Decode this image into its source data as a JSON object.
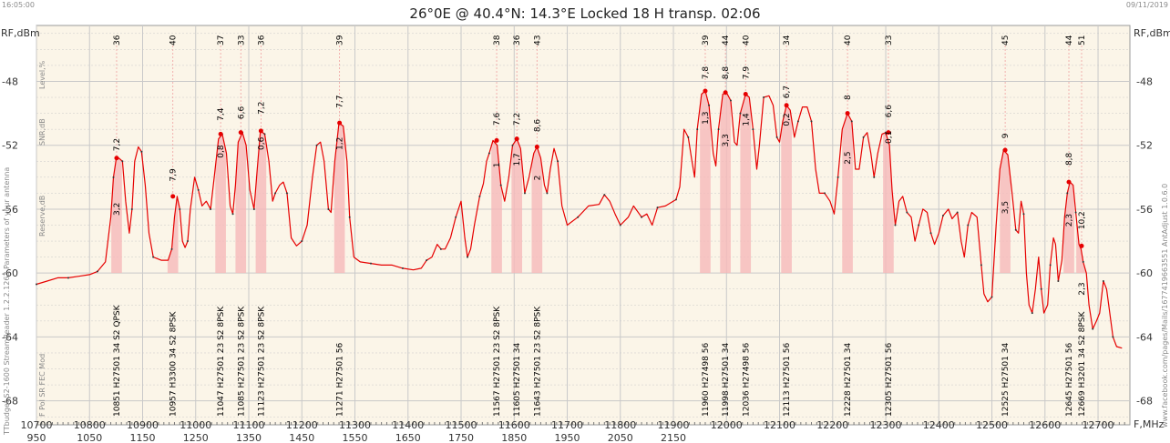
{
  "header": {
    "title": "26°0E @ 40.4°N: 14.3°E Locked 18 H transp. 02:06",
    "time_left": "16:05:00",
    "date_right": "09/11/2019"
  },
  "side_texts": {
    "left_info": "TTbudget S2-1600 StreamReader 1.2.2.1263 Parameters of your antenna",
    "right_info": "www.facebook.com/pages/Mails/1677419663551 AntAdjust 1.0.6.0"
  },
  "chart_data": {
    "type": "line",
    "xlabel": "F,MHz",
    "ylabel": "RF,dBm",
    "ylabel_right": "RF,dBm",
    "xlim": [
      10700,
      12760
    ],
    "ylim": [
      -69.5,
      -44.5
    ],
    "yticks": [
      -48,
      -52,
      -56,
      -60,
      -64,
      -68
    ],
    "xticks_top": [
      10700,
      10800,
      10900,
      11000,
      11100,
      11200,
      11300,
      11400,
      11500,
      11600,
      11700,
      11800,
      11900,
      12000,
      12100,
      12200,
      12300,
      12400,
      12500,
      12600,
      12700
    ],
    "xticks_bottom": [
      950,
      1050,
      1150,
      1250,
      1350,
      1450,
      1550,
      1650,
      1750,
      1850,
      1950,
      2050,
      2150
    ],
    "row_labels": [
      "Level,%",
      "SNR,dB",
      "Reserve,dB",
      "F Pol SR FEC Mod"
    ],
    "grid": true,
    "spectrum": [
      [
        10700,
        -60.7
      ],
      [
        10720,
        -60.5
      ],
      [
        10740,
        -60.3
      ],
      [
        10760,
        -60.3
      ],
      [
        10780,
        -60.2
      ],
      [
        10800,
        -60.1
      ],
      [
        10815,
        -59.9
      ],
      [
        10830,
        -59.3
      ],
      [
        10840,
        -56.5
      ],
      [
        10845,
        -54
      ],
      [
        10850,
        -52.9
      ],
      [
        10855,
        -52.8
      ],
      [
        10862,
        -53
      ],
      [
        10868,
        -55.5
      ],
      [
        10875,
        -57.5
      ],
      [
        10880,
        -56
      ],
      [
        10885,
        -53
      ],
      [
        10892,
        -52.1
      ],
      [
        10898,
        -52.4
      ],
      [
        10905,
        -54.5
      ],
      [
        10912,
        -57.5
      ],
      [
        10920,
        -59
      ],
      [
        10935,
        -59.2
      ],
      [
        10948,
        -59.2
      ],
      [
        10955,
        -58.5
      ],
      [
        10960,
        -56.5
      ],
      [
        10965,
        -55.2
      ],
      [
        10970,
        -56
      ],
      [
        10975,
        -58
      ],
      [
        10980,
        -58.4
      ],
      [
        10985,
        -58
      ],
      [
        10990,
        -56
      ],
      [
        10998,
        -54
      ],
      [
        11005,
        -54.8
      ],
      [
        11012,
        -55.8
      ],
      [
        11020,
        -55.5
      ],
      [
        11028,
        -56
      ],
      [
        11035,
        -54
      ],
      [
        11043,
        -51.6
      ],
      [
        11050,
        -51.3
      ],
      [
        11058,
        -52.5
      ],
      [
        11065,
        -55.8
      ],
      [
        11070,
        -56.3
      ],
      [
        11075,
        -54.5
      ],
      [
        11080,
        -51.8
      ],
      [
        11088,
        -51.2
      ],
      [
        11095,
        -52
      ],
      [
        11102,
        -54.8
      ],
      [
        11110,
        -56
      ],
      [
        11116,
        -53.5
      ],
      [
        11122,
        -51.1
      ],
      [
        11130,
        -51.3
      ],
      [
        11138,
        -53
      ],
      [
        11145,
        -55.5
      ],
      [
        11150,
        -55
      ],
      [
        11158,
        -54.5
      ],
      [
        11165,
        -54.3
      ],
      [
        11172,
        -55
      ],
      [
        11180,
        -57.8
      ],
      [
        11190,
        -58.3
      ],
      [
        11200,
        -58
      ],
      [
        11210,
        -57
      ],
      [
        11220,
        -54
      ],
      [
        11228,
        -52
      ],
      [
        11235,
        -51.8
      ],
      [
        11242,
        -53
      ],
      [
        11250,
        -56
      ],
      [
        11255,
        -56.2
      ],
      [
        11262,
        -53
      ],
      [
        11270,
        -50.6
      ],
      [
        11278,
        -50.8
      ],
      [
        11285,
        -53
      ],
      [
        11290,
        -56.5
      ],
      [
        11298,
        -59
      ],
      [
        11310,
        -59.3
      ],
      [
        11330,
        -59.4
      ],
      [
        11350,
        -59.5
      ],
      [
        11370,
        -59.5
      ],
      [
        11390,
        -59.7
      ],
      [
        11410,
        -59.8
      ],
      [
        11425,
        -59.7
      ],
      [
        11435,
        -59.2
      ],
      [
        11445,
        -59
      ],
      [
        11455,
        -58.2
      ],
      [
        11462,
        -58.5
      ],
      [
        11470,
        -58.5
      ],
      [
        11480,
        -57.8
      ],
      [
        11490,
        -56.5
      ],
      [
        11500,
        -55.5
      ],
      [
        11507,
        -57.8
      ],
      [
        11512,
        -59
      ],
      [
        11518,
        -58.5
      ],
      [
        11525,
        -57
      ],
      [
        11535,
        -55.2
      ],
      [
        11542,
        -54.4
      ],
      [
        11548,
        -53
      ],
      [
        11553,
        -52.5
      ],
      [
        11560,
        -51.7
      ],
      [
        11568,
        -52
      ],
      [
        11575,
        -54.5
      ],
      [
        11582,
        -55.5
      ],
      [
        11590,
        -54
      ],
      [
        11597,
        -52
      ],
      [
        11605,
        -51.6
      ],
      [
        11612,
        -52.2
      ],
      [
        11620,
        -55
      ],
      [
        11628,
        -54
      ],
      [
        11637,
        -52.5
      ],
      [
        11643,
        -52.1
      ],
      [
        11650,
        -52.8
      ],
      [
        11657,
        -54.5
      ],
      [
        11662,
        -55
      ],
      [
        11668,
        -53.5
      ],
      [
        11675,
        -52.2
      ],
      [
        11682,
        -53
      ],
      [
        11690,
        -55.8
      ],
      [
        11700,
        -57
      ],
      [
        11720,
        -56.5
      ],
      [
        11740,
        -55.8
      ],
      [
        11760,
        -55.7
      ],
      [
        11770,
        -55.1
      ],
      [
        11780,
        -55.5
      ],
      [
        11790,
        -56.3
      ],
      [
        11800,
        -57
      ],
      [
        11815,
        -56.5
      ],
      [
        11825,
        -55.8
      ],
      [
        11840,
        -56.5
      ],
      [
        11850,
        -56.3
      ],
      [
        11860,
        -57
      ],
      [
        11870,
        -55.9
      ],
      [
        11885,
        -55.8
      ],
      [
        11895,
        -55.6
      ],
      [
        11905,
        -55.4
      ],
      [
        11912,
        -54.6
      ],
      [
        11920,
        -51
      ],
      [
        11928,
        -51.5
      ],
      [
        11935,
        -53
      ],
      [
        11940,
        -54
      ],
      [
        11945,
        -51
      ],
      [
        11953,
        -48.8
      ],
      [
        11960,
        -48.6
      ],
      [
        11967,
        -49.5
      ],
      [
        11975,
        -52.5
      ],
      [
        11980,
        -53.3
      ],
      [
        11985,
        -51
      ],
      [
        11993,
        -48.8
      ],
      [
        12000,
        -48.7
      ],
      [
        12008,
        -49.2
      ],
      [
        12015,
        -51.8
      ],
      [
        12020,
        -52
      ],
      [
        12026,
        -50
      ],
      [
        12036,
        -48.8
      ],
      [
        12043,
        -49
      ],
      [
        12050,
        -51
      ],
      [
        12057,
        -53.5
      ],
      [
        12062,
        -52
      ],
      [
        12070,
        -49
      ],
      [
        12080,
        -48.9
      ],
      [
        12088,
        -49.5
      ],
      [
        12095,
        -51.5
      ],
      [
        12100,
        -51.8
      ],
      [
        12106,
        -50.5
      ],
      [
        12113,
        -49.5
      ],
      [
        12120,
        -49.8
      ],
      [
        12128,
        -51.5
      ],
      [
        12135,
        -50.5
      ],
      [
        12143,
        -49.6
      ],
      [
        12152,
        -49.6
      ],
      [
        12160,
        -50.5
      ],
      [
        12168,
        -53.5
      ],
      [
        12175,
        -55
      ],
      [
        12185,
        -55
      ],
      [
        12195,
        -55.5
      ],
      [
        12203,
        -56.3
      ],
      [
        12210,
        -54
      ],
      [
        12218,
        -51
      ],
      [
        12228,
        -50
      ],
      [
        12236,
        -50.5
      ],
      [
        12243,
        -53.5
      ],
      [
        12250,
        -53.5
      ],
      [
        12258,
        -51.5
      ],
      [
        12265,
        -51.2
      ],
      [
        12272,
        -52.5
      ],
      [
        12278,
        -54
      ],
      [
        12285,
        -52.5
      ],
      [
        12293,
        -51.3
      ],
      [
        12300,
        -51.2
      ],
      [
        12307,
        -52
      ],
      [
        12312,
        -54.8
      ],
      [
        12318,
        -57
      ],
      [
        12325,
        -55.5
      ],
      [
        12332,
        -55.2
      ],
      [
        12340,
        -56.2
      ],
      [
        12348,
        -56.5
      ],
      [
        12355,
        -58
      ],
      [
        12362,
        -57
      ],
      [
        12370,
        -56
      ],
      [
        12378,
        -56.2
      ],
      [
        12385,
        -57.5
      ],
      [
        12392,
        -58.2
      ],
      [
        12400,
        -57.5
      ],
      [
        12408,
        -56.4
      ],
      [
        12418,
        -56
      ],
      [
        12425,
        -56.6
      ],
      [
        12435,
        -56.2
      ],
      [
        12442,
        -58
      ],
      [
        12448,
        -59
      ],
      [
        12455,
        -57
      ],
      [
        12462,
        -56.2
      ],
      [
        12472,
        -56.5
      ],
      [
        12480,
        -59.5
      ],
      [
        12485,
        -61.3
      ],
      [
        12492,
        -61.8
      ],
      [
        12500,
        -61.5
      ],
      [
        12508,
        -57
      ],
      [
        12515,
        -53.5
      ],
      [
        12522,
        -52.3
      ],
      [
        12530,
        -52.6
      ],
      [
        12538,
        -55
      ],
      [
        12545,
        -57.3
      ],
      [
        12550,
        -57.5
      ],
      [
        12555,
        -55.5
      ],
      [
        12560,
        -56.3
      ],
      [
        12565,
        -60
      ],
      [
        12570,
        -62
      ],
      [
        12576,
        -62.5
      ],
      [
        12582,
        -61
      ],
      [
        12588,
        -59
      ],
      [
        12593,
        -61
      ],
      [
        12598,
        -62.5
      ],
      [
        12605,
        -62
      ],
      [
        12610,
        -59.5
      ],
      [
        12616,
        -57.8
      ],
      [
        12620,
        -58.2
      ],
      [
        12625,
        -60.5
      ],
      [
        12632,
        -59.2
      ],
      [
        12637,
        -56.5
      ],
      [
        12642,
        -55
      ],
      [
        12647,
        -54.3
      ],
      [
        12653,
        -54.5
      ],
      [
        12658,
        -56.2
      ],
      [
        12664,
        -58.2
      ],
      [
        12668,
        -58.5
      ],
      [
        12672,
        -59.3
      ],
      [
        12678,
        -60
      ],
      [
        12683,
        -62
      ],
      [
        12690,
        -63.5
      ],
      [
        12697,
        -63
      ],
      [
        12703,
        -62.5
      ],
      [
        12710,
        -60.5
      ],
      [
        12716,
        -61
      ],
      [
        12722,
        -62.5
      ],
      [
        12728,
        -64
      ],
      [
        12735,
        -64.6
      ],
      [
        12745,
        -64.7
      ]
    ],
    "transponders": [
      {
        "freq": 10851,
        "label": "10851 H27501 34 S2 QPSK",
        "level": "36",
        "snr": "7,2",
        "reserve": "3,2",
        "rf": -52.8,
        "snr_y": -52.6,
        "res_y": -56.4
      },
      {
        "freq": 10957,
        "label": "10957 H3300 34 S2 8PSK",
        "level": "40",
        "snr": "7,9",
        "reserve": "",
        "rf": -55.2,
        "snr_y": -54.5,
        "res_y": 0
      },
      {
        "freq": 11047,
        "label": "11047 H27501 23 S2 8PSK",
        "level": "37",
        "snr": "7,4",
        "reserve": "0,8",
        "rf": -51.3,
        "snr_y": -50.7,
        "res_y": -52.8
      },
      {
        "freq": 11085,
        "label": "11085 H27501 23 S2 8PSK",
        "level": "33",
        "snr": "6,6",
        "reserve": "",
        "rf": -51.2,
        "snr_y": -50.6,
        "res_y": 0
      },
      {
        "freq": 11123,
        "label": "11123 H27501 23 S2 8PSK",
        "level": "36",
        "snr": "7,2",
        "reserve": "0,6",
        "rf": -51.1,
        "snr_y": -50.3,
        "res_y": -52.3
      },
      {
        "freq": 11271,
        "label": "11271 H27501 56",
        "level": "39",
        "snr": "7,7",
        "reserve": "1,2",
        "rf": -50.6,
        "snr_y": -49.9,
        "res_y": -52.3
      },
      {
        "freq": 11567,
        "label": "11567 H27501 23 S2 8PSK",
        "level": "38",
        "snr": "7,6",
        "reserve": "1",
        "rf": -51.7,
        "snr_y": -51,
        "res_y": -53.4
      },
      {
        "freq": 11605,
        "label": "11605 H27501 34",
        "level": "36",
        "snr": "7,2",
        "reserve": "1,7",
        "rf": -51.6,
        "snr_y": -51,
        "res_y": -53.3
      },
      {
        "freq": 11643,
        "label": "11643 H27501 23 S2 8PSK",
        "level": "43",
        "snr": "8,6",
        "reserve": "2",
        "rf": -52.1,
        "snr_y": -51.4,
        "res_y": -54.2
      },
      {
        "freq": 11960,
        "label": "11960 H27498 56",
        "level": "39",
        "snr": "7,8",
        "reserve": "1,3",
        "rf": -48.6,
        "snr_y": -48.1,
        "res_y": -50.7
      },
      {
        "freq": 11998,
        "label": "11998 H27501 34",
        "level": "44",
        "snr": "8,8",
        "reserve": "3,3",
        "rf": -48.7,
        "snr_y": -48.1,
        "res_y": -52.1
      },
      {
        "freq": 12036,
        "label": "12036 H27498 56",
        "level": "40",
        "snr": "7,9",
        "reserve": "1,4",
        "rf": -48.8,
        "snr_y": -48.1,
        "res_y": -50.8
      },
      {
        "freq": 12113,
        "label": "12113 H27501 56",
        "level": "34",
        "snr": "6,7",
        "reserve": "0,2",
        "rf": -49.5,
        "snr_y": -49.3,
        "res_y": -50.8
      },
      {
        "freq": 12228,
        "label": "12228 H27501 34",
        "level": "40",
        "snr": "8",
        "reserve": "2,5",
        "rf": -50,
        "snr_y": -49.4,
        "res_y": -53.2
      },
      {
        "freq": 12305,
        "label": "12305 H27501 56",
        "level": "33",
        "snr": "6,6",
        "reserve": "0,1",
        "rf": -51.2,
        "snr_y": -50.5,
        "res_y": -51.9
      },
      {
        "freq": 12525,
        "label": "12525 H27501 34",
        "level": "45",
        "snr": "9",
        "reserve": "3,5",
        "rf": -52.3,
        "snr_y": -51.8,
        "res_y": -56.3
      },
      {
        "freq": 12645,
        "label": "12645 H27501 56",
        "level": "44",
        "snr": "8,8",
        "reserve": "2,3",
        "rf": -54.3,
        "snr_y": -53.5,
        "res_y": -57.1
      },
      {
        "freq": 12669,
        "label": "12669 H3201 34 S2 8PSK",
        "level": "51",
        "snr": "10,2",
        "reserve": "2,3",
        "rf": -58.3,
        "snr_y": -57.5,
        "res_y": -61.4
      }
    ]
  },
  "colors": {
    "background": "#ffffff",
    "plot_bg": "#fbf5e8",
    "grid": "#c9c9c9",
    "curve": "#e60000",
    "fill": "#f6b9b9",
    "text": "#333333"
  }
}
